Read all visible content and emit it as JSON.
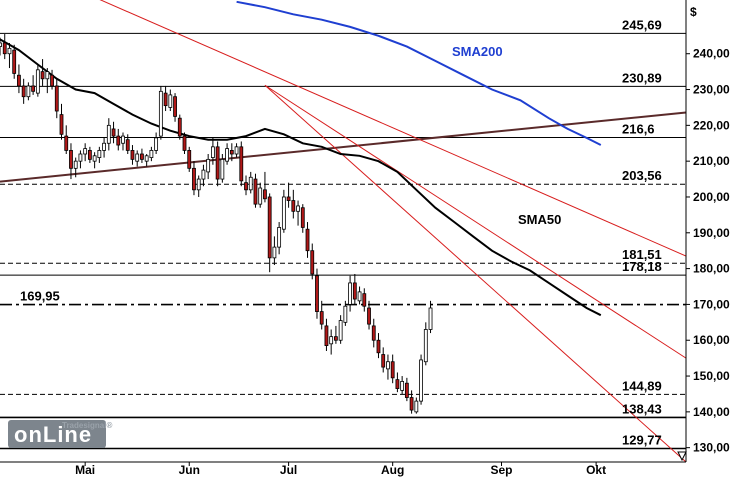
{
  "chart_data": {
    "type": "candlestick",
    "currency_label": "$",
    "ylim": [
      126,
      255
    ],
    "y_ticks": [
      "130,00",
      "140,00",
      "150,00",
      "160,00",
      "170,00",
      "180,00",
      "190,00",
      "200,00",
      "210,00",
      "220,00",
      "230,00",
      "240,00"
    ],
    "y_tick_values": [
      130,
      140,
      150,
      160,
      170,
      180,
      190,
      200,
      210,
      220,
      230,
      240
    ],
    "x_ticks": [
      "Mai",
      "Jun",
      "Jul",
      "Aug",
      "Sep",
      "Okt"
    ],
    "x_tick_values": [
      28,
      50,
      71,
      93,
      116,
      136
    ],
    "x_range": [
      10,
      155
    ],
    "levels": [
      {
        "label": "245,69",
        "value": 245.69,
        "style": "solid"
      },
      {
        "label": "230,89",
        "value": 230.89,
        "style": "solid"
      },
      {
        "label": "216,6",
        "value": 216.6,
        "style": "solid"
      },
      {
        "label": "203,56",
        "value": 203.56,
        "style": "dashed"
      },
      {
        "label": "181,51",
        "value": 181.51,
        "style": "dashed"
      },
      {
        "label": "178,18",
        "value": 178.18,
        "style": "solid"
      },
      {
        "label": "169,95",
        "value": 169.95,
        "style": "dashdot"
      },
      {
        "label": "144,89",
        "value": 144.89,
        "style": "dashed"
      },
      {
        "label": "138,43",
        "value": 138.43,
        "style": "solid"
      },
      {
        "label": "129,77",
        "value": 129.77,
        "style": "solid"
      }
    ],
    "trendlines": [
      {
        "color": "#5a2a2a",
        "points": [
          [
            10,
            204.3
          ],
          [
            155,
            223.6
          ]
        ]
      },
      {
        "color": "#d81e1e",
        "points": [
          [
            23,
            259.8
          ],
          [
            155,
            183.5
          ]
        ]
      },
      {
        "color": "#d81e1e",
        "points": [
          [
            66,
            231.2
          ],
          [
            155,
            155.0
          ]
        ]
      },
      {
        "color": "#d81e1e",
        "points": [
          [
            66,
            231.2
          ],
          [
            155,
            126.0
          ]
        ]
      }
    ],
    "sma_series": [
      {
        "name": "SMA200",
        "color": "#1f3fd1",
        "points": [
          [
            60,
            254.5
          ],
          [
            66,
            253
          ],
          [
            72,
            251
          ],
          [
            78,
            249.5
          ],
          [
            84,
            247.5
          ],
          [
            90,
            245
          ],
          [
            96,
            242
          ],
          [
            102,
            238
          ],
          [
            108,
            234
          ],
          [
            114,
            230
          ],
          [
            120,
            227
          ],
          [
            126,
            222
          ],
          [
            130,
            219
          ],
          [
            134,
            216.5
          ],
          [
            137,
            214.5
          ]
        ]
      },
      {
        "name": "SMA50",
        "color": "#000000",
        "points": [
          [
            10,
            244
          ],
          [
            14,
            241
          ],
          [
            18,
            237
          ],
          [
            22,
            233
          ],
          [
            26,
            230
          ],
          [
            30,
            229
          ],
          [
            34,
            226
          ],
          [
            38,
            223
          ],
          [
            42,
            220.5
          ],
          [
            46,
            218.5
          ],
          [
            50,
            217
          ],
          [
            54,
            216
          ],
          [
            58,
            216
          ],
          [
            62,
            217
          ],
          [
            66,
            219
          ],
          [
            70,
            217.5
          ],
          [
            74,
            215
          ],
          [
            78,
            214
          ],
          [
            82,
            212
          ],
          [
            86,
            211.5
          ],
          [
            90,
            210
          ],
          [
            94,
            207
          ],
          [
            98,
            202
          ],
          [
            102,
            197
          ],
          [
            106,
            193
          ],
          [
            110,
            189
          ],
          [
            114,
            185
          ],
          [
            118,
            182
          ],
          [
            122,
            179.5
          ],
          [
            126,
            176
          ],
          [
            130,
            172.5
          ],
          [
            134,
            169
          ],
          [
            137,
            167
          ]
        ]
      }
    ],
    "candles": [
      {
        "x": 10,
        "o": 242,
        "h": 244.5,
        "l": 239.5,
        "c": 243
      },
      {
        "x": 11,
        "o": 243,
        "h": 245.5,
        "l": 238.5,
        "c": 240
      },
      {
        "x": 12,
        "o": 240,
        "h": 243,
        "l": 236,
        "c": 241.5
      },
      {
        "x": 13,
        "o": 241,
        "h": 242.5,
        "l": 233,
        "c": 234.5
      },
      {
        "x": 14,
        "o": 234,
        "h": 237,
        "l": 229,
        "c": 231
      },
      {
        "x": 15,
        "o": 231,
        "h": 233,
        "l": 226,
        "c": 228
      },
      {
        "x": 16,
        "o": 228,
        "h": 232,
        "l": 227,
        "c": 231
      },
      {
        "x": 17,
        "o": 231,
        "h": 234,
        "l": 228.5,
        "c": 229.5
      },
      {
        "x": 18,
        "o": 229,
        "h": 237,
        "l": 228,
        "c": 235.5
      },
      {
        "x": 19,
        "o": 235,
        "h": 238.5,
        "l": 231,
        "c": 233
      },
      {
        "x": 20,
        "o": 233,
        "h": 236,
        "l": 229,
        "c": 235
      },
      {
        "x": 21,
        "o": 234,
        "h": 235.5,
        "l": 230,
        "c": 231
      },
      {
        "x": 22,
        "o": 231,
        "h": 233,
        "l": 222,
        "c": 224
      },
      {
        "x": 23,
        "o": 223,
        "h": 226,
        "l": 216,
        "c": 217.5
      },
      {
        "x": 24,
        "o": 217,
        "h": 220,
        "l": 212,
        "c": 213
      },
      {
        "x": 25,
        "o": 213,
        "h": 215,
        "l": 205,
        "c": 208
      },
      {
        "x": 26,
        "o": 208,
        "h": 211,
        "l": 205.5,
        "c": 210
      },
      {
        "x": 27,
        "o": 210,
        "h": 213,
        "l": 208,
        "c": 212
      },
      {
        "x": 28,
        "o": 212,
        "h": 215,
        "l": 210,
        "c": 213.5
      },
      {
        "x": 29,
        "o": 213,
        "h": 214,
        "l": 209.5,
        "c": 210.5
      },
      {
        "x": 30,
        "o": 210,
        "h": 212.5,
        "l": 208,
        "c": 211.5
      },
      {
        "x": 31,
        "o": 211,
        "h": 214,
        "l": 209.5,
        "c": 213
      },
      {
        "x": 32,
        "o": 213,
        "h": 216.5,
        "l": 211,
        "c": 215
      },
      {
        "x": 33,
        "o": 215,
        "h": 222,
        "l": 213,
        "c": 220
      },
      {
        "x": 34,
        "o": 219,
        "h": 221,
        "l": 215,
        "c": 217
      },
      {
        "x": 35,
        "o": 217,
        "h": 219,
        "l": 213,
        "c": 214.5
      },
      {
        "x": 36,
        "o": 215,
        "h": 218,
        "l": 213,
        "c": 217
      },
      {
        "x": 37,
        "o": 216,
        "h": 217.5,
        "l": 212,
        "c": 213
      },
      {
        "x": 38,
        "o": 213,
        "h": 214.5,
        "l": 209,
        "c": 210.5
      },
      {
        "x": 39,
        "o": 210,
        "h": 213,
        "l": 208.5,
        "c": 212
      },
      {
        "x": 40,
        "o": 212,
        "h": 213.5,
        "l": 209.5,
        "c": 210.5
      },
      {
        "x": 41,
        "o": 210,
        "h": 212,
        "l": 208.5,
        "c": 211.5
      },
      {
        "x": 42,
        "o": 211,
        "h": 214,
        "l": 210,
        "c": 213
      },
      {
        "x": 43,
        "o": 213,
        "h": 218,
        "l": 212,
        "c": 216.5
      },
      {
        "x": 44,
        "o": 217,
        "h": 231,
        "l": 216,
        "c": 229.5
      },
      {
        "x": 45,
        "o": 229,
        "h": 231,
        "l": 224,
        "c": 225.5
      },
      {
        "x": 46,
        "o": 225,
        "h": 230,
        "l": 224,
        "c": 228.5
      },
      {
        "x": 47,
        "o": 228,
        "h": 229,
        "l": 221,
        "c": 222.5
      },
      {
        "x": 48,
        "o": 222,
        "h": 223,
        "l": 216,
        "c": 217
      },
      {
        "x": 49,
        "o": 217,
        "h": 218,
        "l": 212,
        "c": 213
      },
      {
        "x": 50,
        "o": 213,
        "h": 214,
        "l": 207,
        "c": 208
      },
      {
        "x": 51,
        "o": 208,
        "h": 210,
        "l": 200.5,
        "c": 202
      },
      {
        "x": 52,
        "o": 202,
        "h": 206,
        "l": 200,
        "c": 205
      },
      {
        "x": 53,
        "o": 205,
        "h": 209,
        "l": 203,
        "c": 207.5
      },
      {
        "x": 54,
        "o": 207,
        "h": 212,
        "l": 205,
        "c": 210.5
      },
      {
        "x": 55,
        "o": 211,
        "h": 216.5,
        "l": 209,
        "c": 214
      },
      {
        "x": 56,
        "o": 214,
        "h": 215.5,
        "l": 203,
        "c": 205
      },
      {
        "x": 57,
        "o": 205,
        "h": 212,
        "l": 204,
        "c": 210.5
      },
      {
        "x": 58,
        "o": 210,
        "h": 215,
        "l": 209,
        "c": 213.5
      },
      {
        "x": 59,
        "o": 213,
        "h": 215,
        "l": 210,
        "c": 212
      },
      {
        "x": 60,
        "o": 212,
        "h": 215,
        "l": 211,
        "c": 214
      },
      {
        "x": 61,
        "o": 214,
        "h": 215.5,
        "l": 203,
        "c": 204.5
      },
      {
        "x": 62,
        "o": 204,
        "h": 206,
        "l": 200.5,
        "c": 202
      },
      {
        "x": 63,
        "o": 202,
        "h": 207,
        "l": 201,
        "c": 205.5
      },
      {
        "x": 64,
        "o": 205,
        "h": 206.5,
        "l": 197,
        "c": 198
      },
      {
        "x": 65,
        "o": 198,
        "h": 204,
        "l": 197,
        "c": 202.5
      },
      {
        "x": 66,
        "o": 202,
        "h": 207,
        "l": 198.5,
        "c": 199.5
      },
      {
        "x": 67,
        "o": 200,
        "h": 201,
        "l": 179,
        "c": 183
      },
      {
        "x": 68,
        "o": 183,
        "h": 189,
        "l": 181,
        "c": 186
      },
      {
        "x": 69,
        "o": 186,
        "h": 193,
        "l": 184,
        "c": 191.5
      },
      {
        "x": 70,
        "o": 191,
        "h": 202,
        "l": 190,
        "c": 200
      },
      {
        "x": 71,
        "o": 200,
        "h": 204,
        "l": 197,
        "c": 199
      },
      {
        "x": 72,
        "o": 199,
        "h": 202,
        "l": 194,
        "c": 196
      },
      {
        "x": 73,
        "o": 196,
        "h": 199,
        "l": 192,
        "c": 197.5
      },
      {
        "x": 74,
        "o": 197,
        "h": 198,
        "l": 190,
        "c": 191.5
      },
      {
        "x": 75,
        "o": 191,
        "h": 193,
        "l": 183,
        "c": 185
      },
      {
        "x": 76,
        "o": 185,
        "h": 187,
        "l": 177,
        "c": 178.5
      },
      {
        "x": 77,
        "o": 178,
        "h": 180,
        "l": 166,
        "c": 168
      },
      {
        "x": 78,
        "o": 168,
        "h": 171,
        "l": 163,
        "c": 164.5
      },
      {
        "x": 79,
        "o": 164,
        "h": 166,
        "l": 157,
        "c": 158.5
      },
      {
        "x": 80,
        "o": 159,
        "h": 163,
        "l": 156,
        "c": 161
      },
      {
        "x": 81,
        "o": 161,
        "h": 164,
        "l": 159,
        "c": 160
      },
      {
        "x": 82,
        "o": 160,
        "h": 167,
        "l": 159,
        "c": 165.5
      },
      {
        "x": 83,
        "o": 165,
        "h": 171,
        "l": 164,
        "c": 169.5
      },
      {
        "x": 84,
        "o": 170,
        "h": 178,
        "l": 168,
        "c": 176
      },
      {
        "x": 85,
        "o": 176,
        "h": 178.5,
        "l": 170,
        "c": 171.5
      },
      {
        "x": 86,
        "o": 171,
        "h": 175,
        "l": 170,
        "c": 173.5
      },
      {
        "x": 87,
        "o": 173,
        "h": 174.5,
        "l": 168,
        "c": 169.5
      },
      {
        "x": 88,
        "o": 169,
        "h": 171,
        "l": 163,
        "c": 164.5
      },
      {
        "x": 89,
        "o": 164,
        "h": 166,
        "l": 158,
        "c": 160
      },
      {
        "x": 90,
        "o": 160,
        "h": 162,
        "l": 155,
        "c": 156.5
      },
      {
        "x": 91,
        "o": 156,
        "h": 158,
        "l": 151,
        "c": 152.5
      },
      {
        "x": 92,
        "o": 152,
        "h": 156,
        "l": 149,
        "c": 154
      },
      {
        "x": 93,
        "o": 154,
        "h": 156,
        "l": 148,
        "c": 149.5
      },
      {
        "x": 94,
        "o": 149,
        "h": 151,
        "l": 145.5,
        "c": 146.5
      },
      {
        "x": 95,
        "o": 146,
        "h": 150,
        "l": 145,
        "c": 148.5
      },
      {
        "x": 96,
        "o": 148,
        "h": 149.5,
        "l": 143,
        "c": 144
      },
      {
        "x": 97,
        "o": 144,
        "h": 146,
        "l": 139.5,
        "c": 140.5
      },
      {
        "x": 98,
        "o": 140,
        "h": 144,
        "l": 139.5,
        "c": 143
      },
      {
        "x": 99,
        "o": 143,
        "h": 156,
        "l": 142,
        "c": 154.5
      },
      {
        "x": 100,
        "o": 154,
        "h": 165,
        "l": 153,
        "c": 163
      },
      {
        "x": 101,
        "o": 163,
        "h": 171,
        "l": 162,
        "c": 169
      }
    ]
  },
  "branding": {
    "logo_top": "Tradesignal®",
    "logo_main": "onLine"
  }
}
